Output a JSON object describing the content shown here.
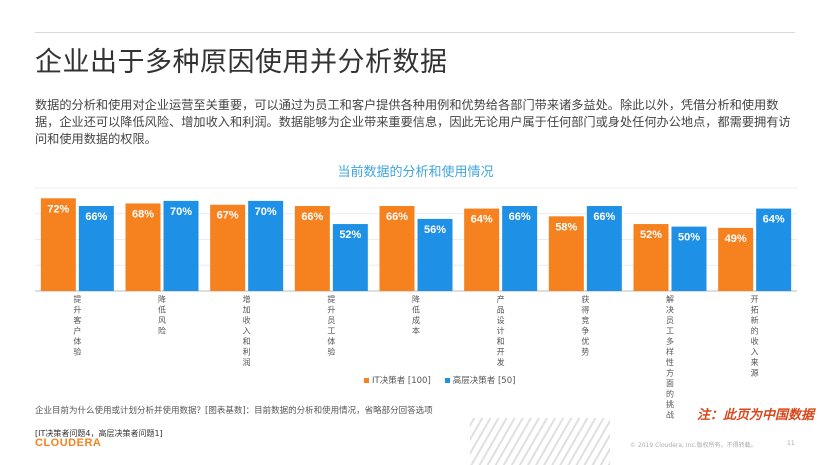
{
  "page": {
    "title": "企业出于多种原因使用并分析数据",
    "intro": "数据的分析和使用对企业运营至关重要，可以通过为员工和客户提供各种用例和优势给各部门带来诸多益处。除此以外，凭借分析和使用数据，企业还可以降低风险、增加收入和利润。数据能够为企业带来重要信息，因此无论用户属于任何部门或身处任何办公地点，都需要拥有访问和使用数据的权限。",
    "footnote": "企业目前为什么使用或计划分析并使用数据？[图表基数]：目前数据的分析和使用情况，省略部分回答选项",
    "note": "注：此页为中国数据",
    "source": "[IT决策者问题4，高层决策者问题1]",
    "logo": "CLOUDERA",
    "copyright": "© 2019 Cloudera, Inc.版权所有。不得转载。",
    "page_number": "11"
  },
  "colors": {
    "orange": "#f5811f",
    "blue": "#1e90e6",
    "title_blue": "#3ea6dd",
    "label_red": "#d9471a"
  },
  "chart_data": {
    "type": "bar",
    "title": "当前数据的分析和使用情况",
    "categories": [
      "提升客户体验",
      "降低风险",
      "增加收入和利润",
      "提升员工体验",
      "降低成本",
      "产品设计和开发",
      "获得竞争优势",
      "解决员工多样性方面的挑战",
      "开拓新的收入来源"
    ],
    "series": [
      {
        "name": "IT决策者 [100]",
        "values": [
          72,
          68,
          67,
          66,
          66,
          64,
          58,
          52,
          49
        ]
      },
      {
        "name": "高层决策者 [50]",
        "values": [
          66,
          70,
          70,
          52,
          56,
          66,
          66,
          50,
          64
        ]
      }
    ],
    "value_suffix": "%",
    "ylim": [
      0,
      80
    ],
    "grid": true,
    "legend_position": "bottom"
  }
}
